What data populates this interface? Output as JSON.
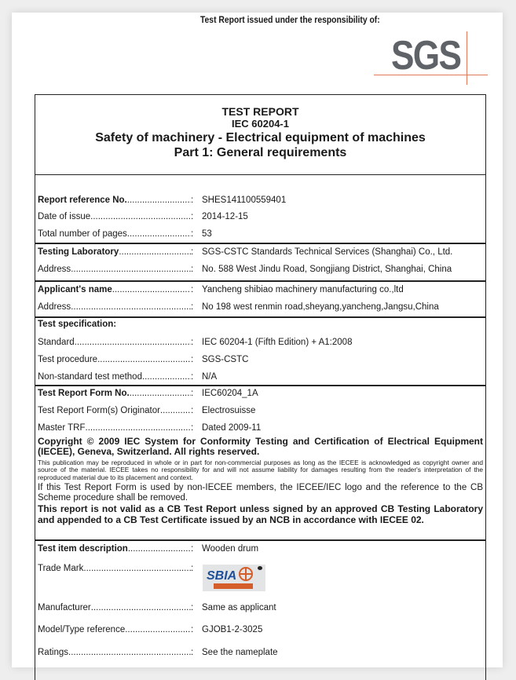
{
  "header": {
    "issued_text": "Test Report issued under the responsibility of:",
    "logo_text": "SGS"
  },
  "title": {
    "line1": "TEST REPORT",
    "line2": "IEC 60204-1",
    "line3": "Safety of machinery - Electrical equipment of machines",
    "line4": "Part 1: General requirements"
  },
  "fields": [
    {
      "label": "Report reference No.",
      "value": "SHES141100559401",
      "bold": true
    },
    {
      "label": "Date of issue",
      "value": "2014-12-15"
    },
    {
      "label": "Total number of pages",
      "value": "53"
    },
    {
      "label": "Testing Laboratory",
      "value": "SGS-CSTC Standards Technical Services (Shanghai) Co., Ltd.",
      "bold": true
    },
    {
      "label": "Address",
      "value": "No. 588 West Jindu Road, Songjiang District, Shanghai, China"
    },
    {
      "label": "Applicant's name",
      "value": "Yancheng shibiao machinery manufacturing co.,ltd",
      "bold": true
    },
    {
      "label": "Address",
      "value": "No 198 west renmin road,sheyang,yancheng,Jangsu,China"
    },
    {
      "label": "Test specification:",
      "value": "",
      "bold": true
    },
    {
      "label": "Standard",
      "value": "IEC 60204-1 (Fifth Edition) + A1:2008"
    },
    {
      "label": "Test procedure",
      "value": "SGS-CSTC"
    },
    {
      "label": "Non-standard test method",
      "value": "N/A"
    },
    {
      "label": "Test Report Form No.",
      "value": "IEC60204_1A",
      "bold": true
    },
    {
      "label": "Test Report Form(s) Originator",
      "value": "Electrosuisse"
    },
    {
      "label": "Master TRF",
      "value": "Dated 2009-11"
    },
    {
      "label": "Test item description",
      "value": "Wooden drum",
      "bold": true
    },
    {
      "label": "Trade Mark",
      "value": ""
    },
    {
      "label": "Manufacturer",
      "value": "Same as applicant"
    },
    {
      "label": "Model/Type reference",
      "value": "GJOB1-2-3025"
    },
    {
      "label": "Ratings",
      "value": "See the nameplate"
    }
  ],
  "colon": ":",
  "copyright": {
    "bold_notice": "Copyright © 2009 IEC System for Conformity Testing and Certification of Electrical Equipment (IECEE), Geneva, Switzerland. All rights reserved.",
    "small_notice": "This publication may be reproduced in whole or in part for non-commercial purposes as long as the IECEE is acknowledged as copyright owner and source of the material. IECEE takes no responsibility for and will not assume liability for damages resulting from the reader's interpretation of the reproduced material due to its placement and context.",
    "notice": "If this Test Report Form is used by non-IECEE members, the IECEE/IEC logo and the reference to the CB Scheme procedure shall be removed.",
    "validity": "This report is not valid as a CB Test Report unless signed by an approved CB Testing Laboratory and appended to a CB Test Certificate issued by an NCB in accordance with IECEE 02."
  },
  "trade_mark_logo_text": "SBIA",
  "colors": {
    "logo_gray": "#5f6367",
    "logo_line": "#e0785a",
    "trademark_blue": "#1d4f9a",
    "trademark_orange": "#d45d2a"
  }
}
